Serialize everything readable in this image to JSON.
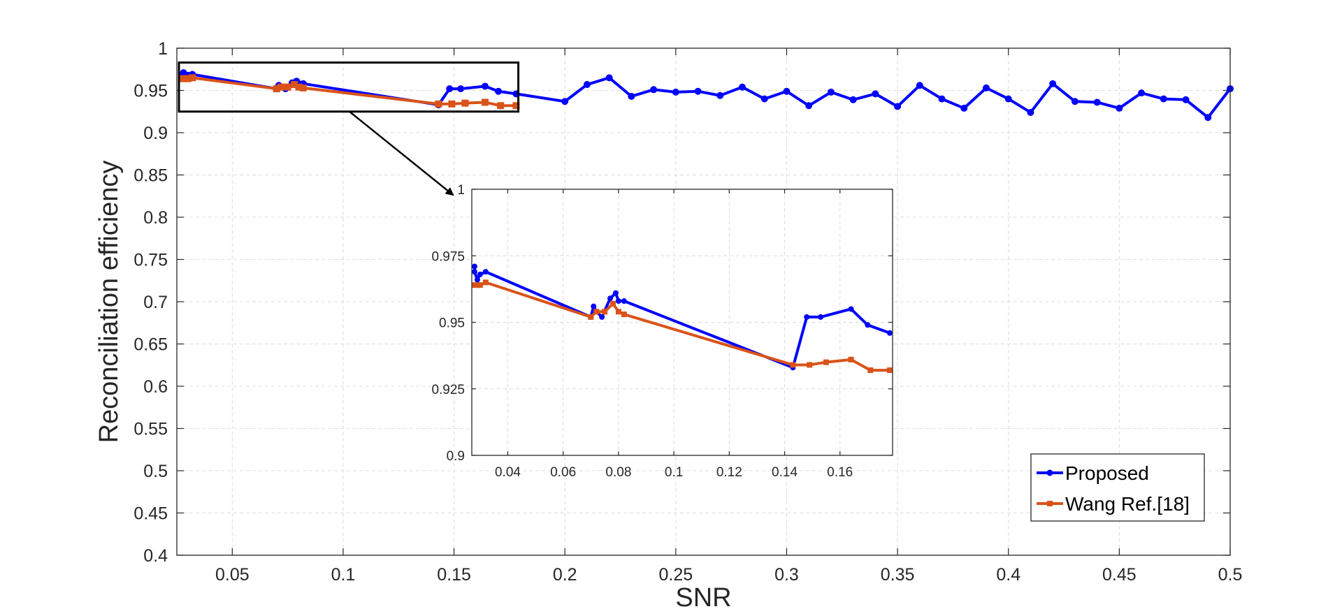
{
  "chart_data": [
    {
      "type": "line",
      "panel": "main",
      "title": "",
      "xlabel": "SNR",
      "ylabel": "Reconciliation efficiency",
      "xlim": [
        0.025,
        0.5
      ],
      "ylim": [
        0.4,
        1.0
      ],
      "xticks": [
        0.05,
        0.1,
        0.15,
        0.2,
        0.25,
        0.3,
        0.35,
        0.4,
        0.45,
        0.5
      ],
      "xtick_labels": [
        "0.05",
        "0.1",
        "0.15",
        "0.2",
        "0.25",
        "0.3",
        "0.35",
        "0.4",
        "0.45",
        "0.5"
      ],
      "yticks": [
        0.4,
        0.45,
        0.5,
        0.55,
        0.6,
        0.65,
        0.7,
        0.75,
        0.8,
        0.85,
        0.9,
        0.95,
        1.0
      ],
      "ytick_labels": [
        "0.4",
        "0.45",
        "0.5",
        "0.55",
        "0.6",
        "0.65",
        "0.7",
        "0.75",
        "0.8",
        "0.85",
        "0.9",
        "0.95",
        "1"
      ],
      "grid": true,
      "legend_position": "bottom-right",
      "zoom_region": {
        "x": [
          0.025,
          0.179
        ],
        "y": [
          0.925,
          0.983
        ]
      },
      "series": [
        {
          "name": "Proposed",
          "color": "#0000ff",
          "marker": "circle",
          "points": [
            [
              0.028,
              0.971
            ],
            [
              0.028,
              0.969
            ],
            [
              0.029,
              0.966
            ],
            [
              0.03,
              0.968
            ],
            [
              0.032,
              0.969
            ],
            [
              0.07,
              0.952
            ],
            [
              0.071,
              0.956
            ],
            [
              0.072,
              0.954
            ],
            [
              0.074,
              0.952
            ],
            [
              0.077,
              0.959
            ],
            [
              0.079,
              0.961
            ],
            [
              0.08,
              0.958
            ],
            [
              0.082,
              0.958
            ],
            [
              0.143,
              0.933
            ],
            [
              0.148,
              0.952
            ],
            [
              0.153,
              0.952
            ],
            [
              0.164,
              0.955
            ],
            [
              0.17,
              0.949
            ],
            [
              0.178,
              0.946
            ],
            [
              0.2,
              0.937
            ],
            [
              0.21,
              0.957
            ],
            [
              0.22,
              0.965
            ],
            [
              0.23,
              0.943
            ],
            [
              0.24,
              0.951
            ],
            [
              0.25,
              0.948
            ],
            [
              0.26,
              0.949
            ],
            [
              0.27,
              0.944
            ],
            [
              0.28,
              0.954
            ],
            [
              0.29,
              0.94
            ],
            [
              0.3,
              0.949
            ],
            [
              0.31,
              0.932
            ],
            [
              0.32,
              0.948
            ],
            [
              0.33,
              0.939
            ],
            [
              0.34,
              0.946
            ],
            [
              0.35,
              0.931
            ],
            [
              0.36,
              0.956
            ],
            [
              0.37,
              0.94
            ],
            [
              0.38,
              0.929
            ],
            [
              0.39,
              0.953
            ],
            [
              0.4,
              0.94
            ],
            [
              0.41,
              0.924
            ],
            [
              0.42,
              0.958
            ],
            [
              0.43,
              0.937
            ],
            [
              0.44,
              0.936
            ],
            [
              0.45,
              0.929
            ],
            [
              0.46,
              0.947
            ],
            [
              0.47,
              0.94
            ],
            [
              0.48,
              0.939
            ],
            [
              0.49,
              0.918
            ],
            [
              0.5,
              0.952
            ]
          ]
        },
        {
          "name": "Wang Ref.[18]",
          "color": "#d95319",
          "marker": "square",
          "points": [
            [
              0.028,
              0.964
            ],
            [
              0.029,
              0.964
            ],
            [
              0.03,
              0.964
            ],
            [
              0.032,
              0.965
            ],
            [
              0.07,
              0.952
            ],
            [
              0.072,
              0.954
            ],
            [
              0.075,
              0.954
            ],
            [
              0.078,
              0.957
            ],
            [
              0.08,
              0.954
            ],
            [
              0.082,
              0.953
            ],
            [
              0.143,
              0.934
            ],
            [
              0.149,
              0.934
            ],
            [
              0.155,
              0.935
            ],
            [
              0.164,
              0.936
            ],
            [
              0.171,
              0.932
            ],
            [
              0.178,
              0.932
            ]
          ]
        }
      ]
    },
    {
      "type": "line",
      "panel": "inset",
      "title": "",
      "xlabel": "",
      "ylabel": "",
      "xlim": [
        0.027,
        0.179
      ],
      "ylim": [
        0.9,
        1.0
      ],
      "xticks": [
        0.04,
        0.06,
        0.08,
        0.1,
        0.12,
        0.14,
        0.16
      ],
      "xtick_labels": [
        "0.04",
        "0.06",
        "0.08",
        "0.1",
        "0.12",
        "0.14",
        "0.16"
      ],
      "yticks": [
        0.9,
        0.925,
        0.95,
        0.975,
        1.0
      ],
      "ytick_labels": [
        "0.9",
        "0.925",
        "0.95",
        "0.975",
        "1"
      ],
      "grid": true,
      "series": [
        {
          "name": "Proposed",
          "color": "#0000ff",
          "marker": "circle",
          "points": [
            [
              0.028,
              0.971
            ],
            [
              0.028,
              0.969
            ],
            [
              0.029,
              0.966
            ],
            [
              0.03,
              0.968
            ],
            [
              0.032,
              0.969
            ],
            [
              0.07,
              0.952
            ],
            [
              0.071,
              0.956
            ],
            [
              0.072,
              0.954
            ],
            [
              0.074,
              0.952
            ],
            [
              0.077,
              0.959
            ],
            [
              0.079,
              0.961
            ],
            [
              0.08,
              0.958
            ],
            [
              0.082,
              0.958
            ],
            [
              0.143,
              0.933
            ],
            [
              0.148,
              0.952
            ],
            [
              0.153,
              0.952
            ],
            [
              0.164,
              0.955
            ],
            [
              0.17,
              0.949
            ],
            [
              0.178,
              0.946
            ]
          ]
        },
        {
          "name": "Wang Ref.[18]",
          "color": "#d95319",
          "marker": "square",
          "points": [
            [
              0.028,
              0.964
            ],
            [
              0.029,
              0.964
            ],
            [
              0.03,
              0.964
            ],
            [
              0.032,
              0.965
            ],
            [
              0.07,
              0.952
            ],
            [
              0.072,
              0.954
            ],
            [
              0.075,
              0.954
            ],
            [
              0.078,
              0.957
            ],
            [
              0.08,
              0.954
            ],
            [
              0.082,
              0.953
            ],
            [
              0.143,
              0.934
            ],
            [
              0.149,
              0.934
            ],
            [
              0.155,
              0.935
            ],
            [
              0.164,
              0.936
            ],
            [
              0.171,
              0.932
            ],
            [
              0.178,
              0.932
            ]
          ]
        }
      ]
    }
  ]
}
